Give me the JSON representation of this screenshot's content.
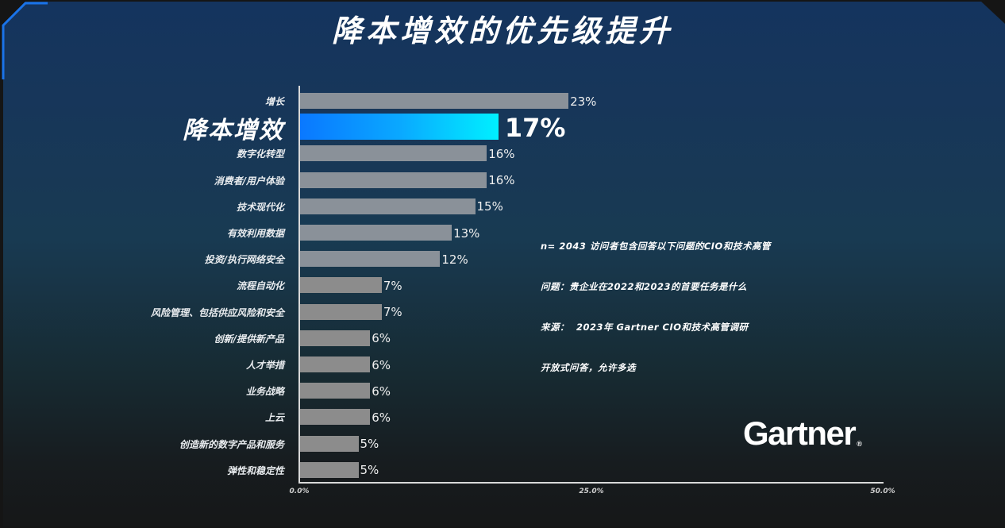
{
  "slide": {
    "title": "降本增效的优先级提升"
  },
  "chart_data": {
    "type": "bar",
    "orientation": "horizontal",
    "title": "降本增效的优先级提升",
    "categories": [
      "增长",
      "降本增效",
      "数字化转型",
      "消费者/用户体验",
      "技术现代化",
      "有效利用数据",
      "投资/执行网络安全",
      "流程自动化",
      "风险管理、包括供应风险和安全",
      "创新/提供新产品",
      "人才举措",
      "业务战略",
      "上云",
      "创造新的数字产品和服务",
      "弹性和稳定性"
    ],
    "values": [
      23,
      17,
      16,
      16,
      15,
      13,
      12,
      7,
      7,
      6,
      6,
      6,
      6,
      5,
      5
    ],
    "value_labels": [
      "23%",
      "17%",
      "16%",
      "16%",
      "15%",
      "13%",
      "12%",
      "7%",
      "7%",
      "6%",
      "6%",
      "6%",
      "6%",
      "5%",
      "5%"
    ],
    "highlight_index": 1,
    "xlabel": "",
    "ylabel": "",
    "xlim": [
      0,
      50
    ],
    "x_ticks": [
      "0.0%",
      "25.0%",
      "50.0%"
    ],
    "grid": false,
    "legend": null,
    "colors": {
      "bar": "#8a9199",
      "highlight_start": "#0a78ff",
      "highlight_end": "#00f0ff"
    }
  },
  "notes": {
    "lines": [
      "n= 2043 访问者包含回答以下问题的CIO和技术高管",
      "问题：贵企业在2022和2023的首要任务是什么",
      "来源：  2023年 Gartner CIO和技术高管调研",
      "开放式问答，允许多选"
    ]
  },
  "brand": {
    "logo_text": "Gartner",
    "registered_mark": "®"
  }
}
